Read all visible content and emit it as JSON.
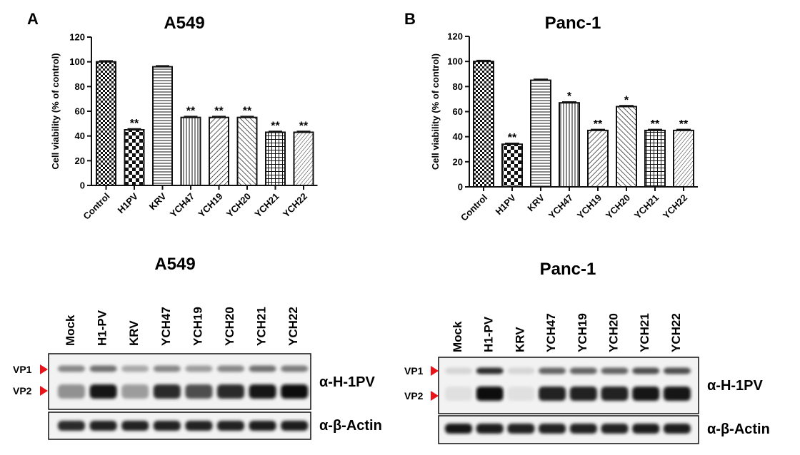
{
  "panels": [
    {
      "letter": "A",
      "title": "A549"
    },
    {
      "letter": "B",
      "title": "Panc-1"
    }
  ],
  "chart_data": [
    {
      "type": "bar",
      "title": "A549",
      "ylabel": "Cell viability (% of control)",
      "xlabel": "",
      "ylim": [
        0,
        120
      ],
      "yticks": [
        0,
        20,
        40,
        60,
        80,
        100,
        120
      ],
      "categories": [
        "Control",
        "H1PV",
        "KRV",
        "YCH47",
        "YCH19",
        "YCH20",
        "YCH21",
        "YCH22"
      ],
      "values": [
        100,
        45,
        96,
        55,
        55,
        55,
        43,
        43
      ],
      "significance": [
        "",
        "**",
        "",
        "**",
        "**",
        "**",
        "**",
        "**"
      ],
      "grid": false,
      "legend": "none"
    },
    {
      "type": "bar",
      "title": "Panc-1",
      "ylabel": "Cell viability (% of control)",
      "xlabel": "",
      "ylim": [
        0,
        120
      ],
      "yticks": [
        0,
        20,
        40,
        60,
        80,
        100,
        120
      ],
      "categories": [
        "Control",
        "H1PV",
        "KRV",
        "YCH47",
        "YCH19",
        "YCH20",
        "YCH21",
        "YCH22"
      ],
      "values": [
        100,
        34,
        85,
        67,
        45,
        64,
        45,
        45
      ],
      "significance": [
        "",
        "**",
        "",
        "*",
        "**",
        "*",
        "**",
        "**"
      ],
      "grid": false,
      "legend": "none"
    }
  ],
  "blots": [
    {
      "title": "A549",
      "lanes": [
        "Mock",
        "H1-PV",
        "KRV",
        "YCH47",
        "YCH19",
        "YCH20",
        "YCH21",
        "YCH22"
      ],
      "markers": [
        "VP1",
        "VP2"
      ],
      "antibody_top": "α-H-1PV",
      "antibody_bottom": "α-β-Actin",
      "vp1_intensity": [
        0.45,
        0.55,
        0.3,
        0.45,
        0.35,
        0.45,
        0.55,
        0.5
      ],
      "vp2_intensity": [
        0.4,
        0.95,
        0.35,
        0.85,
        0.7,
        0.85,
        0.95,
        1.0
      ],
      "actin_intensity": [
        0.85,
        0.9,
        0.9,
        0.9,
        0.9,
        0.9,
        0.92,
        0.92
      ]
    },
    {
      "title": "Panc-1",
      "lanes": [
        "Mock",
        "H1-PV",
        "KRV",
        "YCH47",
        "YCH19",
        "YCH20",
        "YCH21",
        "YCH22"
      ],
      "markers": [
        "VP1",
        "VP2"
      ],
      "antibody_top": "α-H-1PV",
      "antibody_bottom": "α-β-Actin",
      "vp1_intensity": [
        0.1,
        0.85,
        0.1,
        0.6,
        0.6,
        0.6,
        0.7,
        0.7
      ],
      "vp2_intensity": [
        0.05,
        1.0,
        0.05,
        0.9,
        0.9,
        0.9,
        0.95,
        0.95
      ],
      "actin_intensity": [
        0.95,
        0.92,
        0.9,
        0.9,
        0.9,
        0.9,
        0.92,
        0.92
      ]
    }
  ]
}
